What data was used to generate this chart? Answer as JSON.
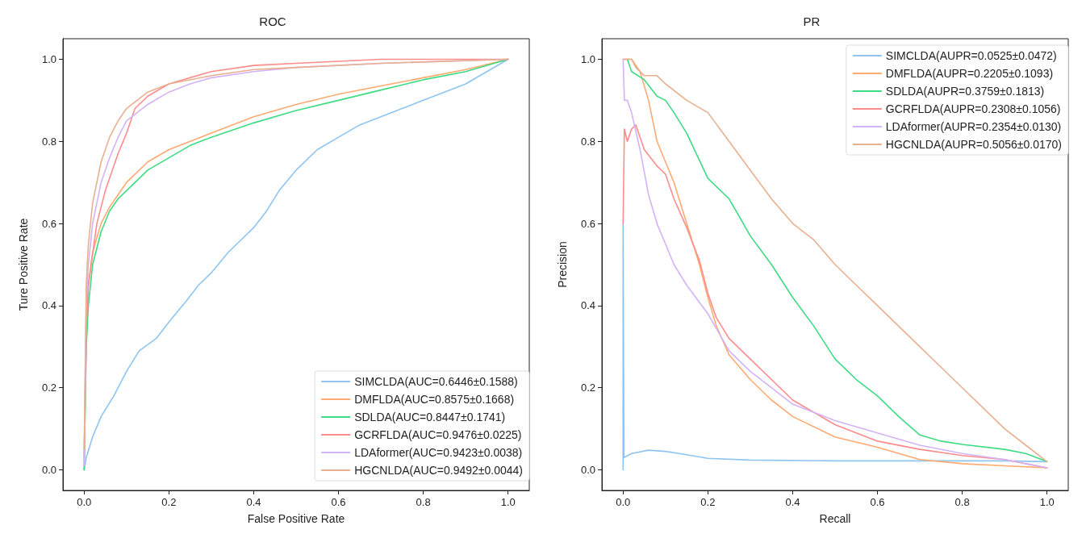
{
  "chart_data": [
    {
      "type": "line",
      "title": "ROC",
      "xlabel": "False Positive Rate",
      "ylabel": "Ture Positive Rate",
      "xlim": [
        -0.05,
        1.05
      ],
      "ylim": [
        -0.05,
        1.05
      ],
      "xticks": [
        {
          "value": 0,
          "label": "0.0"
        },
        {
          "value": 0.2,
          "label": "0.2"
        },
        {
          "value": 0.4,
          "label": "0.4"
        },
        {
          "value": 0.6,
          "label": "0.6"
        },
        {
          "value": 0.8,
          "label": "0.8"
        },
        {
          "value": 1,
          "label": "1.0"
        }
      ],
      "yticks": [
        {
          "value": 0,
          "label": "0.0"
        },
        {
          "value": 0.2,
          "label": "0.2"
        },
        {
          "value": 0.4,
          "label": "0.4"
        },
        {
          "value": 0.6,
          "label": "0.6"
        },
        {
          "value": 0.8,
          "label": "0.8"
        },
        {
          "value": 1,
          "label": "1.0"
        }
      ],
      "grid": false,
      "legend": "bottom right",
      "marker": "none",
      "line_style": "solid",
      "series": [
        {
          "name": "SIMCLDA(AUC=0.6446±0.1588)",
          "color": "#8ec5f0",
          "x": [
            0,
            0.005,
            0.02,
            0.04,
            0.07,
            0.1,
            0.13,
            0.17,
            0.2,
            0.24,
            0.27,
            0.3,
            0.34,
            0.37,
            0.4,
            0.43,
            0.46,
            0.5,
            0.55,
            0.6,
            0.65,
            0.7,
            0.75,
            0.8,
            0.85,
            0.9,
            0.95,
            1
          ],
          "values": [
            0,
            0.03,
            0.08,
            0.13,
            0.18,
            0.24,
            0.29,
            0.32,
            0.36,
            0.41,
            0.45,
            0.48,
            0.53,
            0.56,
            0.59,
            0.63,
            0.68,
            0.73,
            0.78,
            0.81,
            0.84,
            0.86,
            0.88,
            0.9,
            0.92,
            0.94,
            0.97,
            1
          ]
        },
        {
          "name": "DMFLDA(AUC=0.8575±0.1668)",
          "color": "#ffaa70",
          "x": [
            0,
            0.005,
            0.01,
            0.02,
            0.04,
            0.06,
            0.08,
            0.1,
            0.15,
            0.2,
            0.25,
            0.3,
            0.4,
            0.5,
            0.6,
            0.7,
            0.8,
            0.9,
            1
          ],
          "values": [
            0,
            0.3,
            0.45,
            0.53,
            0.6,
            0.64,
            0.67,
            0.7,
            0.75,
            0.78,
            0.8,
            0.82,
            0.86,
            0.89,
            0.915,
            0.935,
            0.955,
            0.975,
            1
          ]
        },
        {
          "name": "SDLDA(AUC=0.8447±0.1741)",
          "color": "#3ddc84",
          "x": [
            0,
            0.005,
            0.01,
            0.02,
            0.04,
            0.06,
            0.08,
            0.1,
            0.15,
            0.2,
            0.25,
            0.3,
            0.4,
            0.5,
            0.6,
            0.7,
            0.8,
            0.9,
            1
          ],
          "values": [
            0,
            0.3,
            0.4,
            0.5,
            0.58,
            0.63,
            0.66,
            0.68,
            0.73,
            0.76,
            0.79,
            0.81,
            0.845,
            0.875,
            0.9,
            0.925,
            0.95,
            0.97,
            1
          ]
        },
        {
          "name": "GCRFLDA(AUC=0.9476±0.0225)",
          "color": "#ff8c8c",
          "x": [
            0,
            0.005,
            0.01,
            0.03,
            0.05,
            0.08,
            0.1,
            0.12,
            0.15,
            0.2,
            0.3,
            0.4,
            0.5,
            0.7,
            1
          ],
          "values": [
            0.03,
            0.35,
            0.45,
            0.6,
            0.68,
            0.77,
            0.82,
            0.88,
            0.91,
            0.94,
            0.97,
            0.985,
            0.99,
            1,
            1
          ]
        },
        {
          "name": "LDAformer(AUC=0.9423±0.0038)",
          "color": "#d3b3f7",
          "x": [
            0,
            0.005,
            0.01,
            0.02,
            0.04,
            0.06,
            0.08,
            0.1,
            0.15,
            0.2,
            0.25,
            0.3,
            0.4,
            0.5,
            0.7,
            1
          ],
          "values": [
            0.01,
            0.4,
            0.5,
            0.6,
            0.7,
            0.76,
            0.81,
            0.85,
            0.89,
            0.92,
            0.94,
            0.955,
            0.97,
            0.98,
            0.99,
            1
          ]
        },
        {
          "name": "HGCNLDA(AUC=0.9492±0.0044)",
          "color": "#e8b08f",
          "x": [
            0,
            0.005,
            0.01,
            0.02,
            0.04,
            0.06,
            0.08,
            0.1,
            0.15,
            0.2,
            0.3,
            0.4,
            0.5,
            0.7,
            1
          ],
          "values": [
            0.05,
            0.45,
            0.55,
            0.65,
            0.75,
            0.81,
            0.85,
            0.88,
            0.92,
            0.94,
            0.96,
            0.975,
            0.98,
            0.99,
            1
          ]
        }
      ]
    },
    {
      "type": "line",
      "title": "PR",
      "xlabel": "Recall",
      "ylabel": "Precision",
      "xlim": [
        -0.05,
        1.05
      ],
      "ylim": [
        -0.05,
        1.05
      ],
      "xticks": [
        {
          "value": 0,
          "label": "0.0"
        },
        {
          "value": 0.2,
          "label": "0.2"
        },
        {
          "value": 0.4,
          "label": "0.4"
        },
        {
          "value": 0.6,
          "label": "0.6"
        },
        {
          "value": 0.8,
          "label": "0.8"
        },
        {
          "value": 1,
          "label": "1.0"
        }
      ],
      "yticks": [
        {
          "value": 0,
          "label": "0.0"
        },
        {
          "value": 0.2,
          "label": "0.2"
        },
        {
          "value": 0.4,
          "label": "0.4"
        },
        {
          "value": 0.6,
          "label": "0.6"
        },
        {
          "value": 0.8,
          "label": "0.8"
        },
        {
          "value": 1,
          "label": "1.0"
        }
      ],
      "grid": false,
      "legend": "top right",
      "marker": "none",
      "line_style": "solid",
      "series": [
        {
          "name": "SIMCLDA(AUPR=0.0525±0.0472)",
          "color": "#8ec5f0",
          "x": [
            0,
            0,
            0.002,
            0.02,
            0.06,
            0.1,
            0.15,
            0.2,
            0.3,
            0.5,
            0.7,
            0.9,
            1
          ],
          "values": [
            0,
            0.6,
            0.03,
            0.04,
            0.048,
            0.045,
            0.037,
            0.028,
            0.024,
            0.022,
            0.022,
            0.022,
            0.02
          ]
        },
        {
          "name": "DMFLDA(AUPR=0.2205±0.1093)",
          "color": "#ffaa70",
          "x": [
            0,
            0.02,
            0.04,
            0.06,
            0.08,
            0.1,
            0.12,
            0.15,
            0.18,
            0.2,
            0.22,
            0.25,
            0.3,
            0.35,
            0.4,
            0.5,
            0.6,
            0.7,
            0.8,
            0.9,
            1
          ],
          "values": [
            1,
            1,
            0.97,
            0.9,
            0.8,
            0.75,
            0.7,
            0.6,
            0.5,
            0.42,
            0.35,
            0.28,
            0.22,
            0.17,
            0.13,
            0.08,
            0.055,
            0.025,
            0.015,
            0.01,
            0.005
          ]
        },
        {
          "name": "SDLDA(AUPR=0.3759±0.1813)",
          "color": "#3ddc84",
          "x": [
            0.01,
            0.02,
            0.05,
            0.08,
            0.1,
            0.12,
            0.15,
            0.2,
            0.25,
            0.3,
            0.35,
            0.4,
            0.45,
            0.5,
            0.55,
            0.6,
            0.65,
            0.7,
            0.75,
            0.8,
            0.9,
            0.95,
            1
          ],
          "values": [
            1,
            0.97,
            0.95,
            0.91,
            0.9,
            0.87,
            0.82,
            0.71,
            0.66,
            0.57,
            0.5,
            0.42,
            0.35,
            0.27,
            0.22,
            0.18,
            0.13,
            0.085,
            0.07,
            0.062,
            0.05,
            0.04,
            0.02
          ]
        },
        {
          "name": "GCRFLDA(AUPR=0.2308±0.1056)",
          "color": "#ff8c8c",
          "x": [
            0,
            0.003,
            0.01,
            0.02,
            0.03,
            0.05,
            0.08,
            0.1,
            0.12,
            0.15,
            0.18,
            0.2,
            0.22,
            0.25,
            0.3,
            0.35,
            0.4,
            0.5,
            0.6,
            0.7,
            0.8,
            0.9,
            1
          ],
          "values": [
            0.6,
            0.83,
            0.8,
            0.83,
            0.84,
            0.78,
            0.74,
            0.72,
            0.66,
            0.59,
            0.51,
            0.43,
            0.37,
            0.32,
            0.27,
            0.22,
            0.17,
            0.11,
            0.07,
            0.05,
            0.035,
            0.025,
            0.005
          ]
        },
        {
          "name": "LDAformer(AUPR=0.2354±0.0130)",
          "color": "#d3b3f7",
          "x": [
            0,
            0.003,
            0.01,
            0.02,
            0.04,
            0.06,
            0.08,
            0.1,
            0.12,
            0.15,
            0.2,
            0.25,
            0.3,
            0.35,
            0.4,
            0.5,
            0.6,
            0.7,
            0.8,
            0.9,
            1
          ],
          "values": [
            1,
            0.9,
            0.9,
            0.87,
            0.78,
            0.67,
            0.6,
            0.55,
            0.5,
            0.45,
            0.38,
            0.29,
            0.24,
            0.2,
            0.16,
            0.12,
            0.09,
            0.06,
            0.04,
            0.025,
            0.005
          ]
        },
        {
          "name": "HGCNLDA(AUPR=0.5056±0.0170)",
          "color": "#e8b08f",
          "x": [
            0,
            0.02,
            0.03,
            0.05,
            0.08,
            0.1,
            0.15,
            0.2,
            0.25,
            0.3,
            0.35,
            0.4,
            0.45,
            0.5,
            0.55,
            0.6,
            0.65,
            0.7,
            0.75,
            0.8,
            0.85,
            0.9,
            0.95,
            1
          ],
          "values": [
            1,
            1,
            0.98,
            0.96,
            0.96,
            0.94,
            0.9,
            0.87,
            0.8,
            0.73,
            0.66,
            0.6,
            0.56,
            0.5,
            0.45,
            0.4,
            0.35,
            0.3,
            0.25,
            0.2,
            0.15,
            0.1,
            0.06,
            0.02
          ]
        }
      ]
    }
  ]
}
